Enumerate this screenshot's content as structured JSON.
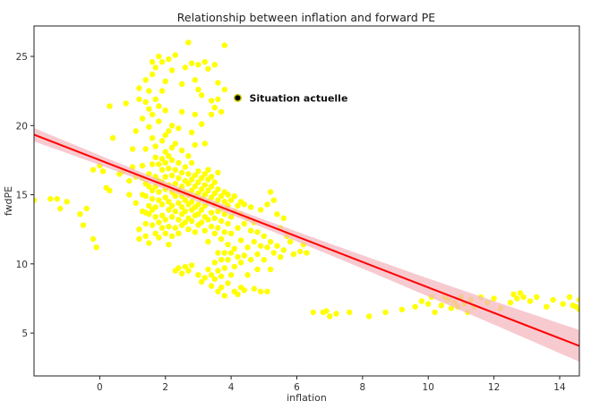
{
  "chart_data": {
    "type": "scatter",
    "title": "Relationship between inflation and forward PE",
    "xlabel": "inflation",
    "ylabel": "fwdPE",
    "xlim": [
      -2,
      14.6
    ],
    "ylim": [
      1.9,
      27.2
    ],
    "xticks": [
      0,
      2,
      4,
      6,
      8,
      10,
      12,
      14
    ],
    "yticks": [
      5,
      10,
      15,
      20,
      25
    ],
    "grid": false,
    "colors": {
      "points": "#ffff00",
      "regression_line": "#ff0000",
      "confidence_band": "#f4b8c0",
      "highlight": "#000000",
      "highlight_edge": "#c8c800"
    },
    "regression": {
      "intercept": 17.5,
      "slope": -0.92,
      "band_halfwidth_center": 0.25,
      "band_halfwidth_edge": 1.15,
      "band_center_x": 3
    },
    "highlight": {
      "x": 4.2,
      "y": 22.0,
      "label": "Situation actuelle"
    },
    "points": [
      [
        -2.0,
        14.6
      ],
      [
        -1.5,
        14.7
      ],
      [
        -1.3,
        14.7
      ],
      [
        -1.2,
        14.0
      ],
      [
        -1.0,
        14.5
      ],
      [
        -0.6,
        13.6
      ],
      [
        -0.5,
        12.8
      ],
      [
        -0.4,
        14.0
      ],
      [
        -0.2,
        11.8
      ],
      [
        -0.1,
        11.2
      ],
      [
        -0.2,
        16.8
      ],
      [
        0.0,
        17.1
      ],
      [
        0.1,
        16.7
      ],
      [
        0.2,
        15.5
      ],
      [
        0.3,
        15.3
      ],
      [
        0.3,
        21.4
      ],
      [
        0.4,
        19.1
      ],
      [
        0.6,
        16.5
      ],
      [
        0.7,
        16.7
      ],
      [
        0.8,
        21.6
      ],
      [
        0.9,
        15.0
      ],
      [
        0.9,
        16.0
      ],
      [
        1.0,
        17.0
      ],
      [
        1.0,
        18.3
      ],
      [
        1.1,
        19.6
      ],
      [
        1.1,
        16.3
      ],
      [
        1.1,
        14.4
      ],
      [
        1.2,
        12.5
      ],
      [
        1.2,
        11.8
      ],
      [
        1.2,
        21.9
      ],
      [
        1.2,
        22.7
      ],
      [
        1.3,
        13.8
      ],
      [
        1.3,
        15.0
      ],
      [
        1.3,
        16.2
      ],
      [
        1.3,
        17.1
      ],
      [
        1.3,
        20.5
      ],
      [
        1.4,
        12.0
      ],
      [
        1.4,
        12.9
      ],
      [
        1.4,
        13.7
      ],
      [
        1.4,
        14.9
      ],
      [
        1.4,
        15.8
      ],
      [
        1.4,
        18.3
      ],
      [
        1.4,
        21.7
      ],
      [
        1.4,
        23.3
      ],
      [
        1.5,
        11.5
      ],
      [
        1.5,
        13.6
      ],
      [
        1.5,
        14.2
      ],
      [
        1.5,
        15.6
      ],
      [
        1.5,
        16.5
      ],
      [
        1.5,
        19.9
      ],
      [
        1.5,
        21.2
      ],
      [
        1.5,
        22.5
      ],
      [
        1.6,
        12.8
      ],
      [
        1.6,
        13.9
      ],
      [
        1.6,
        14.7
      ],
      [
        1.6,
        15.3
      ],
      [
        1.6,
        17.2
      ],
      [
        1.6,
        19.1
      ],
      [
        1.6,
        20.8
      ],
      [
        1.6,
        23.7
      ],
      [
        1.6,
        24.6
      ],
      [
        1.7,
        12.2
      ],
      [
        1.7,
        13.4
      ],
      [
        1.7,
        14.1
      ],
      [
        1.7,
        15.6
      ],
      [
        1.7,
        16.3
      ],
      [
        1.7,
        17.7
      ],
      [
        1.7,
        18.5
      ],
      [
        1.7,
        21.9
      ],
      [
        1.7,
        24.2
      ],
      [
        1.8,
        11.9
      ],
      [
        1.8,
        13.0
      ],
      [
        1.8,
        14.6
      ],
      [
        1.8,
        15.2
      ],
      [
        1.8,
        16.0
      ],
      [
        1.8,
        17.2
      ],
      [
        1.8,
        20.3
      ],
      [
        1.8,
        21.4
      ],
      [
        1.8,
        25.0
      ],
      [
        1.9,
        12.6
      ],
      [
        1.9,
        13.5
      ],
      [
        1.9,
        14.3
      ],
      [
        1.9,
        15.9
      ],
      [
        1.9,
        16.8
      ],
      [
        1.9,
        17.6
      ],
      [
        1.9,
        18.9
      ],
      [
        1.9,
        22.5
      ],
      [
        1.9,
        24.6
      ],
      [
        2.0,
        12.2
      ],
      [
        2.0,
        13.2
      ],
      [
        2.0,
        14.8
      ],
      [
        2.0,
        15.4
      ],
      [
        2.0,
        16.3
      ],
      [
        2.0,
        17.3
      ],
      [
        2.0,
        18.1
      ],
      [
        2.0,
        19.3
      ],
      [
        2.0,
        21.1
      ],
      [
        2.0,
        23.2
      ],
      [
        2.1,
        11.4
      ],
      [
        2.1,
        12.7
      ],
      [
        2.1,
        13.9
      ],
      [
        2.1,
        14.5
      ],
      [
        2.1,
        15.7
      ],
      [
        2.1,
        16.9
      ],
      [
        2.1,
        17.8
      ],
      [
        2.1,
        19.6
      ],
      [
        2.1,
        24.8
      ],
      [
        2.2,
        12.0
      ],
      [
        2.2,
        13.4
      ],
      [
        2.2,
        14.2
      ],
      [
        2.2,
        15.2
      ],
      [
        2.2,
        16.4
      ],
      [
        2.2,
        17.5
      ],
      [
        2.2,
        18.4
      ],
      [
        2.2,
        20.0
      ],
      [
        2.2,
        24.0
      ],
      [
        2.3,
        9.5
      ],
      [
        2.3,
        12.6
      ],
      [
        2.3,
        13.8
      ],
      [
        2.3,
        14.9
      ],
      [
        2.3,
        15.8
      ],
      [
        2.3,
        16.8
      ],
      [
        2.3,
        18.7
      ],
      [
        2.3,
        25.1
      ],
      [
        2.4,
        9.7
      ],
      [
        2.4,
        12.2
      ],
      [
        2.4,
        13.2
      ],
      [
        2.4,
        14.4
      ],
      [
        2.4,
        15.3
      ],
      [
        2.4,
        16.2
      ],
      [
        2.4,
        17.3
      ],
      [
        2.4,
        19.8
      ],
      [
        2.5,
        9.3
      ],
      [
        2.5,
        12.8
      ],
      [
        2.5,
        13.6
      ],
      [
        2.5,
        14.1
      ],
      [
        2.5,
        14.9
      ],
      [
        2.5,
        15.6
      ],
      [
        2.5,
        16.6
      ],
      [
        2.5,
        18.2
      ],
      [
        2.5,
        21.0
      ],
      [
        2.5,
        23.0
      ],
      [
        2.6,
        9.8
      ],
      [
        2.6,
        13.0
      ],
      [
        2.6,
        13.8
      ],
      [
        2.6,
        14.6
      ],
      [
        2.6,
        15.2
      ],
      [
        2.6,
        16.0
      ],
      [
        2.6,
        17.0
      ],
      [
        2.6,
        24.2
      ],
      [
        2.7,
        9.5
      ],
      [
        2.7,
        12.5
      ],
      [
        2.7,
        13.3
      ],
      [
        2.7,
        14.3
      ],
      [
        2.7,
        15.0
      ],
      [
        2.7,
        15.8
      ],
      [
        2.7,
        16.5
      ],
      [
        2.7,
        17.8
      ],
      [
        2.7,
        26.0
      ],
      [
        2.8,
        9.9
      ],
      [
        2.8,
        13.1
      ],
      [
        2.8,
        13.9
      ],
      [
        2.8,
        14.5
      ],
      [
        2.8,
        15.3
      ],
      [
        2.8,
        16.1
      ],
      [
        2.8,
        17.3
      ],
      [
        2.8,
        19.5
      ],
      [
        2.8,
        24.5
      ],
      [
        2.9,
        12.3
      ],
      [
        2.9,
        13.5
      ],
      [
        2.9,
        14.1
      ],
      [
        2.9,
        14.9
      ],
      [
        2.9,
        15.6
      ],
      [
        2.9,
        16.4
      ],
      [
        2.9,
        18.6
      ],
      [
        2.9,
        20.8
      ],
      [
        2.9,
        23.3
      ],
      [
        3.0,
        9.2
      ],
      [
        3.0,
        12.8
      ],
      [
        3.0,
        13.6
      ],
      [
        3.0,
        14.3
      ],
      [
        3.0,
        15.1
      ],
      [
        3.0,
        15.9
      ],
      [
        3.0,
        16.7
      ],
      [
        3.0,
        22.6
      ],
      [
        3.0,
        24.4
      ],
      [
        3.1,
        8.7
      ],
      [
        3.1,
        13.0
      ],
      [
        3.1,
        13.9
      ],
      [
        3.1,
        14.7
      ],
      [
        3.1,
        15.4
      ],
      [
        3.1,
        16.2
      ],
      [
        3.1,
        20.1
      ],
      [
        3.1,
        22.2
      ],
      [
        3.2,
        9.0
      ],
      [
        3.2,
        12.4
      ],
      [
        3.2,
        13.4
      ],
      [
        3.2,
        14.2
      ],
      [
        3.2,
        15.0
      ],
      [
        3.2,
        15.7
      ],
      [
        3.2,
        16.5
      ],
      [
        3.2,
        18.7
      ],
      [
        3.2,
        24.6
      ],
      [
        3.3,
        9.6
      ],
      [
        3.3,
        11.6
      ],
      [
        3.3,
        13.2
      ],
      [
        3.3,
        14.5
      ],
      [
        3.3,
        15.3
      ],
      [
        3.3,
        16.1
      ],
      [
        3.3,
        16.8
      ],
      [
        3.3,
        24.1
      ],
      [
        3.4,
        8.4
      ],
      [
        3.4,
        9.2
      ],
      [
        3.4,
        12.7
      ],
      [
        3.4,
        13.7
      ],
      [
        3.4,
        14.8
      ],
      [
        3.4,
        15.6
      ],
      [
        3.4,
        16.3
      ],
      [
        3.4,
        20.8
      ],
      [
        3.4,
        21.8
      ],
      [
        3.5,
        8.9
      ],
      [
        3.5,
        10.1
      ],
      [
        3.5,
        12.2
      ],
      [
        3.5,
        13.3
      ],
      [
        3.5,
        14.3
      ],
      [
        3.5,
        15.1
      ],
      [
        3.5,
        15.9
      ],
      [
        3.5,
        21.3
      ],
      [
        3.5,
        24.4
      ],
      [
        3.6,
        8.0
      ],
      [
        3.6,
        9.5
      ],
      [
        3.6,
        10.8
      ],
      [
        3.6,
        12.6
      ],
      [
        3.6,
        13.8
      ],
      [
        3.6,
        14.6
      ],
      [
        3.6,
        15.4
      ],
      [
        3.6,
        16.6
      ],
      [
        3.6,
        21.9
      ],
      [
        3.6,
        23.1
      ],
      [
        3.7,
        8.3
      ],
      [
        3.7,
        9.1
      ],
      [
        3.7,
        10.3
      ],
      [
        3.7,
        11.8
      ],
      [
        3.7,
        13.1
      ],
      [
        3.7,
        14.0
      ],
      [
        3.7,
        14.9
      ],
      [
        3.7,
        21.0
      ],
      [
        3.8,
        7.7
      ],
      [
        3.8,
        9.7
      ],
      [
        3.8,
        10.8
      ],
      [
        3.8,
        12.3
      ],
      [
        3.8,
        13.6
      ],
      [
        3.8,
        14.5
      ],
      [
        3.8,
        15.2
      ],
      [
        3.8,
        22.6
      ],
      [
        3.8,
        25.8
      ],
      [
        3.9,
        8.6
      ],
      [
        3.9,
        10.3
      ],
      [
        3.9,
        11.4
      ],
      [
        3.9,
        12.9
      ],
      [
        3.9,
        14.2
      ],
      [
        3.9,
        15.0
      ],
      [
        4.0,
        9.2
      ],
      [
        4.0,
        10.8
      ],
      [
        4.0,
        12.2
      ],
      [
        4.0,
        13.4
      ],
      [
        4.0,
        14.6
      ],
      [
        4.1,
        8.0
      ],
      [
        4.1,
        9.8
      ],
      [
        4.1,
        11.1
      ],
      [
        4.1,
        13.8
      ],
      [
        4.1,
        14.9
      ],
      [
        4.2,
        7.8
      ],
      [
        4.2,
        10.5
      ],
      [
        4.2,
        12.6
      ],
      [
        4.2,
        14.2
      ],
      [
        4.3,
        8.3
      ],
      [
        4.3,
        10.1
      ],
      [
        4.3,
        11.7
      ],
      [
        4.3,
        13.6
      ],
      [
        4.3,
        14.5
      ],
      [
        4.4,
        8.1
      ],
      [
        4.4,
        10.6
      ],
      [
        4.4,
        12.9
      ],
      [
        4.4,
        14.3
      ],
      [
        4.5,
        9.2
      ],
      [
        4.5,
        11.2
      ],
      [
        4.5,
        13.3
      ],
      [
        4.6,
        10.3
      ],
      [
        4.6,
        12.4
      ],
      [
        4.6,
        14.1
      ],
      [
        4.7,
        8.2
      ],
      [
        4.7,
        11.6
      ],
      [
        4.7,
        13.0
      ],
      [
        4.8,
        9.6
      ],
      [
        4.8,
        10.7
      ],
      [
        4.8,
        12.3
      ],
      [
        4.9,
        8.0
      ],
      [
        4.9,
        11.3
      ],
      [
        4.9,
        13.9
      ],
      [
        5.0,
        10.3
      ],
      [
        5.0,
        12.0
      ],
      [
        5.1,
        8.0
      ],
      [
        5.1,
        11.2
      ],
      [
        5.1,
        14.3
      ],
      [
        5.2,
        9.6
      ],
      [
        5.2,
        11.6
      ],
      [
        5.2,
        15.2
      ],
      [
        5.3,
        10.8
      ],
      [
        5.3,
        14.6
      ],
      [
        5.4,
        11.3
      ],
      [
        5.4,
        13.6
      ],
      [
        5.5,
        10.5
      ],
      [
        5.5,
        12.6
      ],
      [
        5.6,
        11.0
      ],
      [
        5.6,
        13.3
      ],
      [
        5.7,
        12.0
      ],
      [
        5.8,
        11.6
      ],
      [
        5.9,
        10.7
      ],
      [
        6.1,
        10.9
      ],
      [
        6.2,
        11.4
      ],
      [
        6.3,
        10.8
      ],
      [
        6.5,
        6.5
      ],
      [
        6.8,
        6.5
      ],
      [
        6.9,
        6.6
      ],
      [
        7.0,
        6.2
      ],
      [
        7.2,
        6.4
      ],
      [
        7.6,
        6.5
      ],
      [
        8.2,
        6.2
      ],
      [
        8.7,
        6.5
      ],
      [
        9.2,
        6.7
      ],
      [
        9.6,
        6.9
      ],
      [
        9.8,
        7.3
      ],
      [
        10.0,
        7.1
      ],
      [
        10.1,
        7.6
      ],
      [
        10.2,
        6.5
      ],
      [
        10.4,
        7.0
      ],
      [
        10.5,
        7.6
      ],
      [
        10.6,
        7.4
      ],
      [
        10.7,
        6.8
      ],
      [
        10.8,
        7.2
      ],
      [
        10.9,
        6.9
      ],
      [
        11.0,
        7.6
      ],
      [
        11.1,
        7.1
      ],
      [
        11.2,
        6.5
      ],
      [
        11.3,
        7.4
      ],
      [
        11.4,
        6.9
      ],
      [
        11.6,
        7.6
      ],
      [
        11.8,
        7.2
      ],
      [
        12.0,
        7.5
      ],
      [
        12.2,
        6.8
      ],
      [
        12.5,
        7.2
      ],
      [
        12.6,
        7.8
      ],
      [
        12.7,
        7.5
      ],
      [
        12.8,
        7.9
      ],
      [
        12.9,
        7.6
      ],
      [
        13.1,
        7.3
      ],
      [
        13.3,
        7.6
      ],
      [
        13.6,
        6.9
      ],
      [
        13.8,
        7.4
      ],
      [
        14.1,
        7.1
      ],
      [
        14.3,
        7.6
      ],
      [
        14.4,
        7.0
      ],
      [
        14.5,
        6.9
      ],
      [
        14.6,
        6.7
      ],
      [
        14.6,
        7.4
      ]
    ]
  }
}
